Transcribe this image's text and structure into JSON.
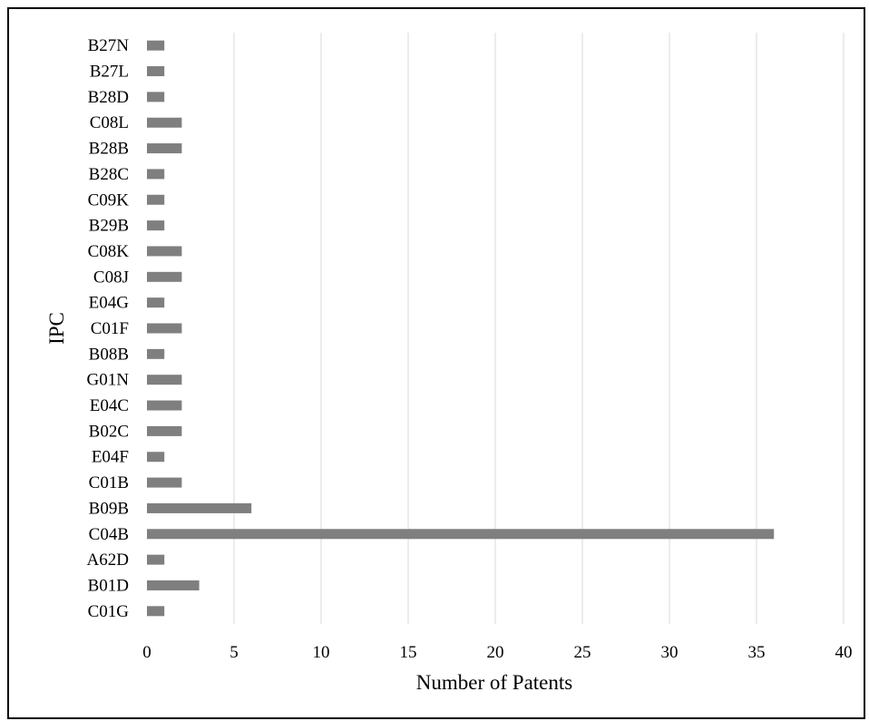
{
  "chart_data": {
    "type": "bar",
    "orientation": "horizontal",
    "categories": [
      "C01G",
      "B01D",
      "A62D",
      "C04B",
      "B09B",
      "C01B",
      "E04F",
      "B02C",
      "E04C",
      "G01N",
      "B08B",
      "C01F",
      "E04G",
      "C08J",
      "C08K",
      "B29B",
      "C09K",
      "B28C",
      "B28B",
      "C08L",
      "B28D",
      "B27L",
      "B27N"
    ],
    "values": [
      1,
      3,
      1,
      36,
      6,
      2,
      1,
      2,
      2,
      2,
      1,
      2,
      1,
      2,
      2,
      1,
      1,
      1,
      2,
      2,
      1,
      1,
      1
    ],
    "xlabel": "Number of Patents",
    "ylabel": "IPC",
    "xlim": [
      0,
      40
    ],
    "xticks": [
      "0",
      "5",
      "10",
      "15",
      "20",
      "25",
      "30",
      "35",
      "40"
    ],
    "grid": "vertical",
    "bar_color": "#7f7f7f",
    "grid_color": "#d9d9d9"
  }
}
